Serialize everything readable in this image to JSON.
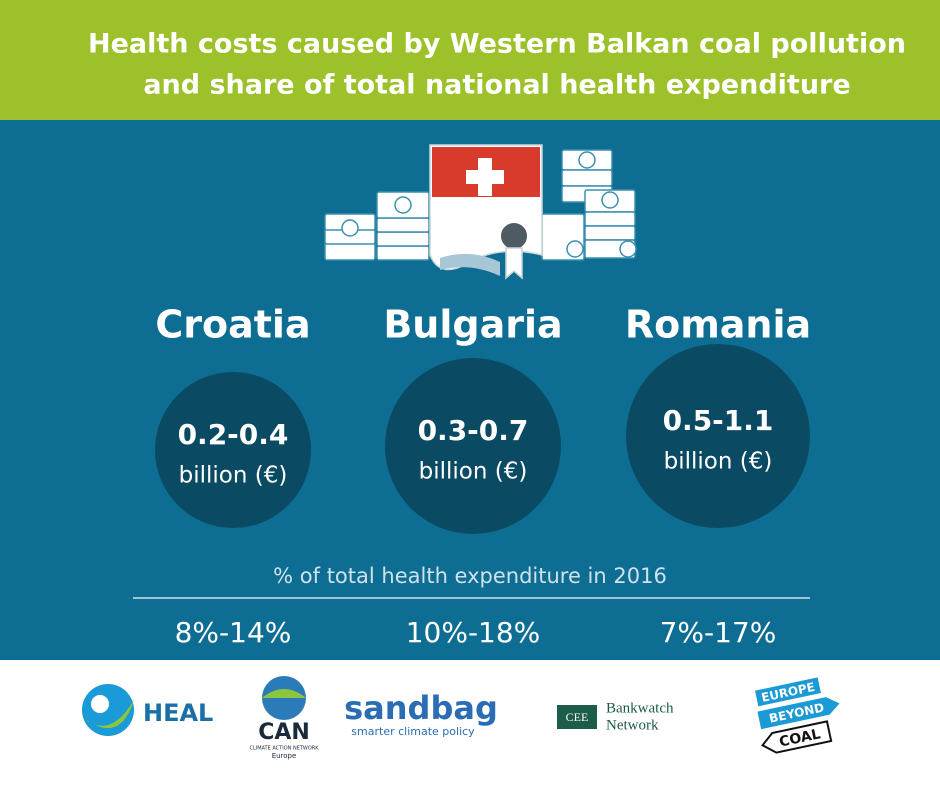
{
  "header": {
    "title_lines": [
      "Health costs caused by Western Balkan coal pollution",
      "and share of total national health expenditure"
    ]
  },
  "countries": [
    {
      "name": "Croatia",
      "cost": "0.2-0.4",
      "unit": "billion (€)",
      "share": "8%-14%"
    },
    {
      "name": "Bulgaria",
      "cost": "0.3-0.7",
      "unit": "billion (€)",
      "share": "10%-18%"
    },
    {
      "name": "Romania",
      "cost": "0.5-1.1",
      "unit": "billion (€)",
      "share": "7%-17%"
    }
  ],
  "share_label": "% of total health expenditure in 2016",
  "logos": {
    "heal": "HEAL",
    "can": {
      "name": "CAN",
      "subtitle": "CLIMATE ACTION NETWORK",
      "region": "Europe"
    },
    "sandbag": {
      "name": "sandbag",
      "tagline": "smarter climate policy"
    },
    "bankwatch": {
      "badge": "CEE",
      "lines": [
        "Bankwatch",
        "Network"
      ]
    },
    "ebc": {
      "lines": [
        "EUROPE",
        "BEYOND",
        "COAL"
      ]
    }
  }
}
